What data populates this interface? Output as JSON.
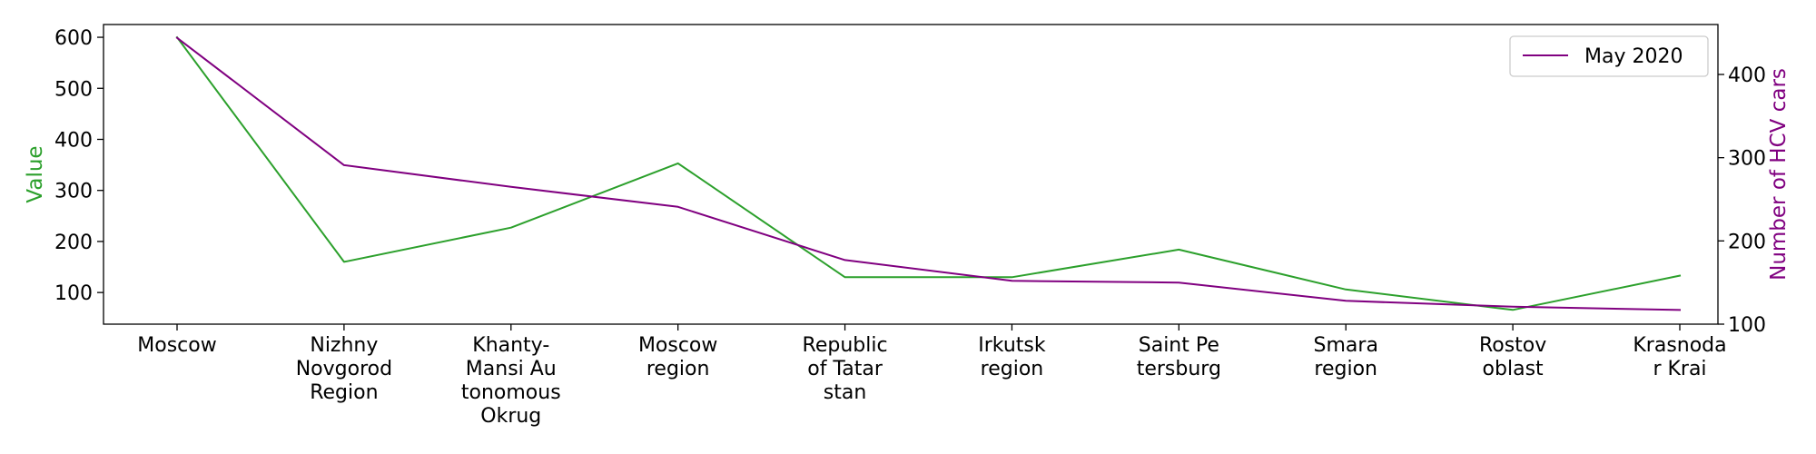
{
  "chart_data": {
    "type": "line",
    "categories": [
      [
        "Moscow"
      ],
      [
        "Nizhny",
        "Novgorod",
        "Region"
      ],
      [
        "Khanty-",
        "Mansi Au",
        "tonomous",
        "Okrug"
      ],
      [
        "Moscow",
        "region"
      ],
      [
        "Republic",
        "of Tatar",
        "stan"
      ],
      [
        "Irkutsk",
        "region"
      ],
      [
        "Saint Pe",
        "tersburg"
      ],
      [
        "Smara",
        "region"
      ],
      [
        "Rostov",
        "oblast"
      ],
      [
        "Krasnoda",
        "r Krai"
      ]
    ],
    "series": [
      {
        "name": "",
        "axis": "left",
        "color": "#2ca02c",
        "values": [
          600,
          160,
          227,
          353,
          130,
          130,
          184,
          106,
          66,
          133
        ]
      },
      {
        "name": "May 2020",
        "axis": "right",
        "color": "#800080",
        "values": [
          444,
          291,
          265,
          241,
          177,
          152,
          150,
          128,
          121,
          117
        ]
      }
    ],
    "y_left": {
      "label": "Value",
      "color": "#2ca02c",
      "lim": [
        38,
        625
      ],
      "ticks": [
        100,
        200,
        300,
        400,
        500,
        600
      ]
    },
    "y_right": {
      "label": "Number of HCV cars",
      "color": "#800080",
      "lim": [
        100,
        460
      ],
      "ticks": [
        100,
        200,
        300,
        400
      ]
    },
    "legend": {
      "position": "top-right",
      "entries": [
        "May 2020"
      ]
    },
    "grid": false
  }
}
